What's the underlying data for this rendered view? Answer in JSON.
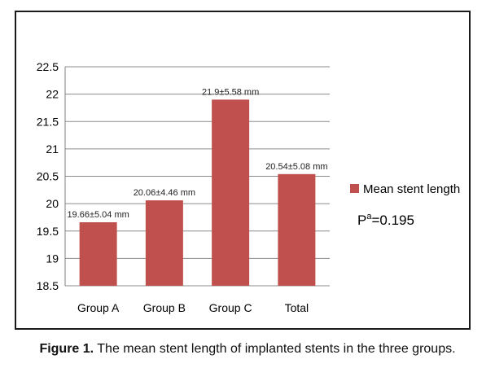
{
  "chart_data": {
    "type": "bar",
    "categories": [
      "Group A",
      "Group B",
      "Group C",
      "Total"
    ],
    "series": [
      {
        "name": "Mean stent length",
        "values": [
          19.66,
          20.06,
          21.9,
          20.54
        ],
        "color": "#c0504d"
      }
    ],
    "data_labels": [
      "19.66±5.04 mm",
      "20.06±4.46 mm",
      "21.9±5.58 mm",
      "20.54±5.08 mm"
    ],
    "ylim": [
      18.5,
      22.5
    ],
    "y_ticks": [
      "18.5",
      "19",
      "19.5",
      "20",
      "20.5",
      "21",
      "21.5",
      "22",
      "22.5"
    ],
    "grid": true,
    "legend_position": "right",
    "annotation": {
      "main": "P",
      "sup": "a",
      "rest": "=0.195"
    }
  },
  "caption": {
    "label": "Figure 1.",
    "text": " The mean stent length of implanted stents in the three groups."
  }
}
